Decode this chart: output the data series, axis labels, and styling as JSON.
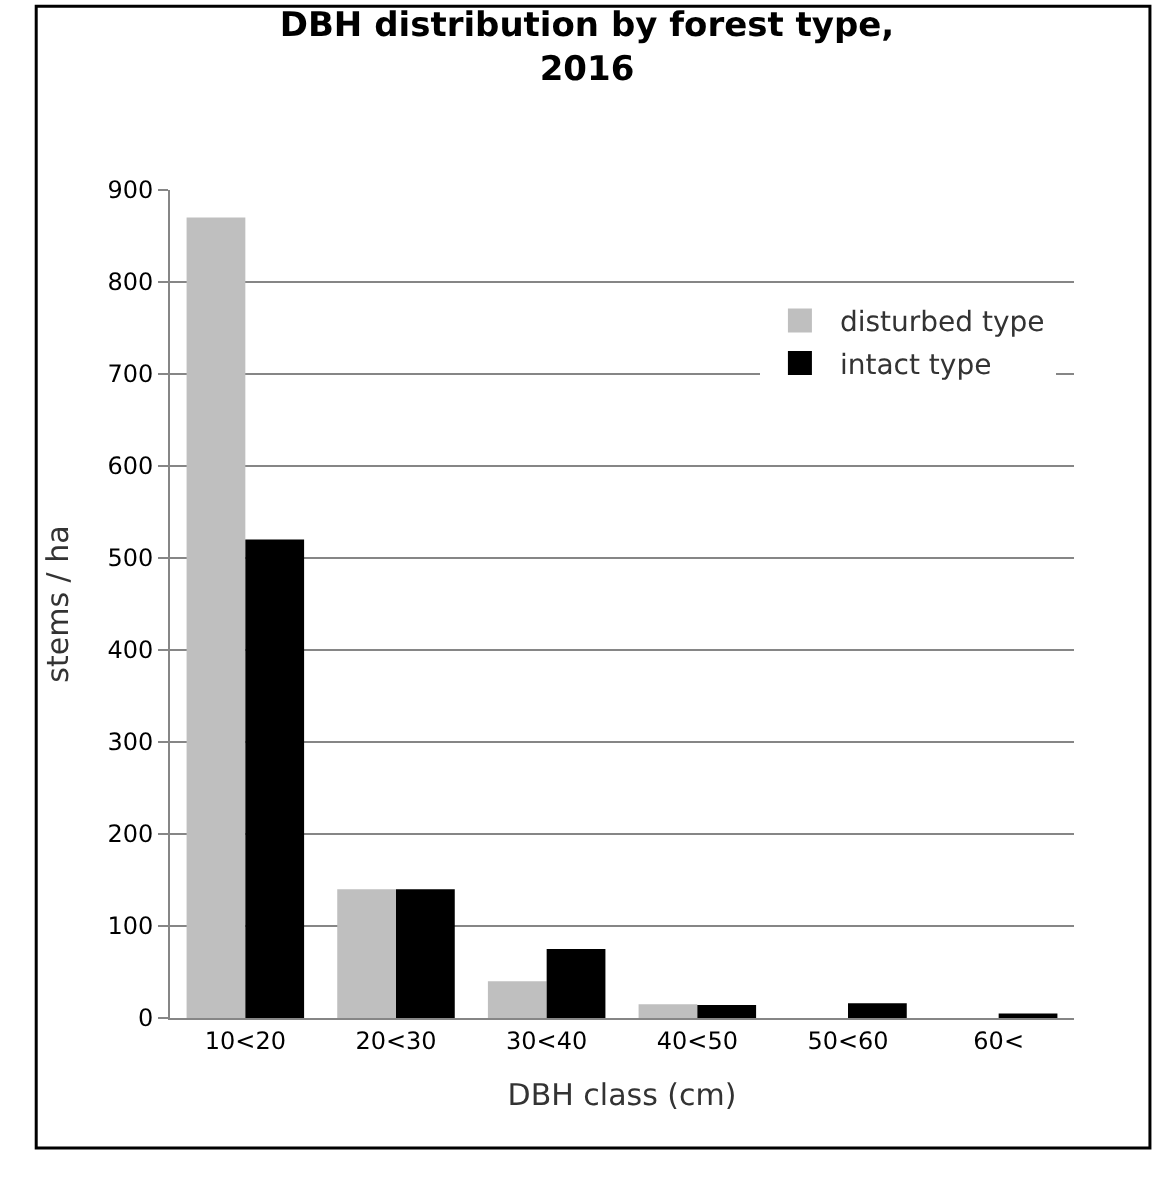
{
  "chart_data": {
    "type": "bar",
    "title": "DBH distribution by forest type,\n2016",
    "xlabel": "DBH class (cm)",
    "ylabel": "stems / ha",
    "categories": [
      "10<20",
      "20<30",
      "30<40",
      "40<50",
      "50<60",
      "60<"
    ],
    "series": [
      {
        "name": "disturbed type",
        "color": "#bfbfbf",
        "values": [
          870,
          140,
          40,
          15,
          0,
          0
        ]
      },
      {
        "name": "intact type",
        "color": "#000000",
        "values": [
          520,
          140,
          75,
          14,
          16,
          5
        ]
      }
    ],
    "ylim": [
      0,
      900
    ],
    "yticks": [
      0,
      100,
      200,
      300,
      400,
      500,
      600,
      700,
      800,
      900
    ],
    "grid": "y",
    "legend": "top right"
  }
}
